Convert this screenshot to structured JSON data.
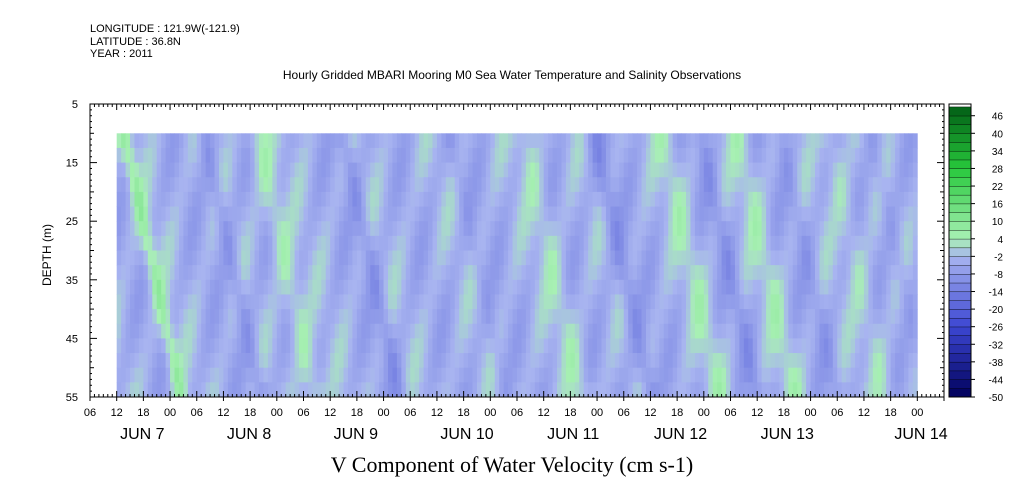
{
  "header": {
    "longitude": "LONGITUDE : 121.9W(-121.9)",
    "latitude": "LATITUDE : 36.8N",
    "year": "YEAR : 2011",
    "title": "Hourly Gridded MBARI Mooring M0 Sea Water Temperature and Salinity Observations"
  },
  "caption": "V Component of Water Velocity (cm s-1)",
  "chart_data": {
    "type": "heatmap",
    "title": "Hourly Gridded MBARI Mooring M0 Sea Water Temperature and Salinity Observations",
    "xlabel": "",
    "ylabel": "DEPTH (m)",
    "colorbar_label": "V Component of Water Velocity (cm s-1)",
    "x_range": [
      "2011-06-06T06:00",
      "2011-06-14T06:00"
    ],
    "data_range_x": [
      "2011-06-06T12:00",
      "2011-06-14T00:00"
    ],
    "y_range": [
      5,
      55
    ],
    "y_inverted": true,
    "data_range_y": [
      10,
      55
    ],
    "y_ticks": [
      5,
      15,
      25,
      35,
      45,
      55
    ],
    "x_hour_ticks": [
      "06",
      "12",
      "18",
      "00",
      "06",
      "12",
      "18",
      "00",
      "06",
      "12",
      "18",
      "00",
      "06",
      "12",
      "18",
      "00",
      "06",
      "12",
      "18",
      "00",
      "06",
      "12",
      "18",
      "00",
      "06",
      "12",
      "18",
      "00",
      "06",
      "12",
      "18",
      "00"
    ],
    "x_day_labels": [
      "JUN 7",
      "JUN 8",
      "JUN 9",
      "JUN 10",
      "JUN 11",
      "JUN 12",
      "JUN 13",
      "JUN 14"
    ],
    "colorbar_levels": [
      -50,
      -44,
      -38,
      -32,
      -26,
      -20,
      -14,
      -8,
      -2,
      4,
      10,
      16,
      22,
      28,
      34,
      40,
      46
    ],
    "colorbar_range": [
      -50,
      50
    ],
    "colors": {
      "negative_deep": "#00005a",
      "negative_mid": "#3c46d2",
      "negative_light": "#a8b4f0",
      "positive_light": "#a8f0b4",
      "positive_mid": "#28c83c",
      "positive_deep": "#005a14"
    }
  }
}
